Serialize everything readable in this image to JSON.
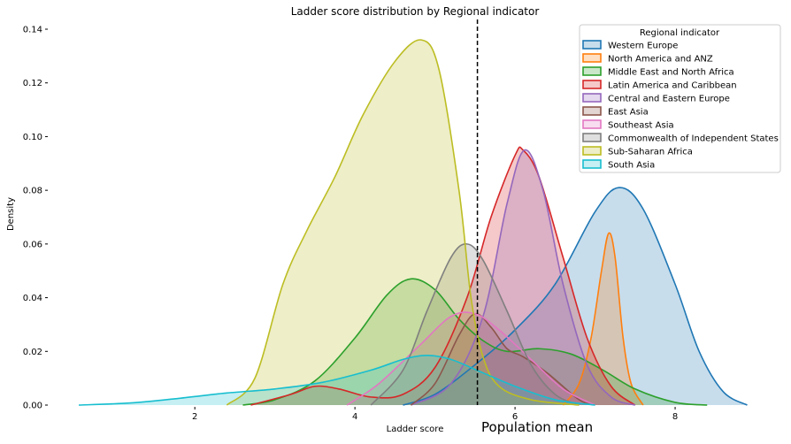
{
  "chart_data": {
    "type": "area",
    "title": "Ladder score distribution by Regional indicator",
    "xlabel": "Ladder score",
    "ylabel": "Density",
    "xlim": [
      0.55,
      8.95
    ],
    "ylim": [
      0,
      0.14
    ],
    "x_ticks": [
      2,
      4,
      6,
      8
    ],
    "y_ticks": [
      0.0,
      0.02,
      0.04,
      0.06,
      0.08,
      0.1,
      0.12,
      0.14
    ],
    "grid": false,
    "legend_title": "Regional indicator",
    "legend_position": "top-right",
    "annotation": {
      "text": "Population mean",
      "x": 5.53,
      "line_style": "dashed",
      "color": "#000000"
    },
    "series": [
      {
        "name": "Western Europe",
        "color": "#1f77b4",
        "points": [
          [
            4.6,
            0
          ],
          [
            5.0,
            0.004
          ],
          [
            5.5,
            0.015
          ],
          [
            6.0,
            0.028
          ],
          [
            6.5,
            0.045
          ],
          [
            7.0,
            0.072
          ],
          [
            7.3,
            0.081
          ],
          [
            7.6,
            0.073
          ],
          [
            8.0,
            0.045
          ],
          [
            8.3,
            0.02
          ],
          [
            8.6,
            0.005
          ],
          [
            8.9,
            0
          ]
        ]
      },
      {
        "name": "North America and ANZ",
        "color": "#ff7f0e",
        "points": [
          [
            6.6,
            0
          ],
          [
            6.8,
            0.008
          ],
          [
            6.95,
            0.025
          ],
          [
            7.08,
            0.05
          ],
          [
            7.17,
            0.064
          ],
          [
            7.25,
            0.055
          ],
          [
            7.35,
            0.025
          ],
          [
            7.45,
            0.008
          ],
          [
            7.6,
            0
          ]
        ]
      },
      {
        "name": "Middle East and North Africa",
        "color": "#2ca02c",
        "points": [
          [
            2.6,
            0
          ],
          [
            3.0,
            0.002
          ],
          [
            3.5,
            0.009
          ],
          [
            4.0,
            0.025
          ],
          [
            4.4,
            0.041
          ],
          [
            4.7,
            0.047
          ],
          [
            5.0,
            0.043
          ],
          [
            5.3,
            0.032
          ],
          [
            5.6,
            0.024
          ],
          [
            5.9,
            0.02
          ],
          [
            6.3,
            0.021
          ],
          [
            6.7,
            0.019
          ],
          [
            7.1,
            0.013
          ],
          [
            7.5,
            0.006
          ],
          [
            8.0,
            0.001
          ],
          [
            8.4,
            0
          ]
        ]
      },
      {
        "name": "Latin America and Caribbean",
        "color": "#d62728",
        "points": [
          [
            2.7,
            0
          ],
          [
            3.2,
            0.004
          ],
          [
            3.5,
            0.007
          ],
          [
            3.8,
            0.006
          ],
          [
            4.2,
            0.003
          ],
          [
            4.6,
            0.004
          ],
          [
            5.0,
            0.014
          ],
          [
            5.4,
            0.04
          ],
          [
            5.7,
            0.07
          ],
          [
            6.0,
            0.093
          ],
          [
            6.1,
            0.095
          ],
          [
            6.3,
            0.085
          ],
          [
            6.6,
            0.055
          ],
          [
            6.9,
            0.025
          ],
          [
            7.2,
            0.007
          ],
          [
            7.5,
            0
          ]
        ]
      },
      {
        "name": "Central and Eastern Europe",
        "color": "#9467bd",
        "points": [
          [
            4.7,
            0
          ],
          [
            5.2,
            0.008
          ],
          [
            5.6,
            0.033
          ],
          [
            5.9,
            0.075
          ],
          [
            6.12,
            0.095
          ],
          [
            6.35,
            0.08
          ],
          [
            6.6,
            0.045
          ],
          [
            6.9,
            0.015
          ],
          [
            7.2,
            0.003
          ],
          [
            7.5,
            0
          ]
        ]
      },
      {
        "name": "East Asia",
        "color": "#8c564b",
        "points": [
          [
            4.7,
            0
          ],
          [
            5.0,
            0.008
          ],
          [
            5.3,
            0.026
          ],
          [
            5.5,
            0.034
          ],
          [
            5.7,
            0.029
          ],
          [
            5.9,
            0.021
          ],
          [
            6.1,
            0.018
          ],
          [
            6.4,
            0.012
          ],
          [
            6.8,
            0.002
          ],
          [
            7.0,
            0
          ]
        ]
      },
      {
        "name": "Southeast Asia",
        "color": "#e377c2",
        "points": [
          [
            3.9,
            0
          ],
          [
            4.3,
            0.008
          ],
          [
            4.8,
            0.022
          ],
          [
            5.2,
            0.033
          ],
          [
            5.5,
            0.034
          ],
          [
            5.8,
            0.028
          ],
          [
            6.2,
            0.017
          ],
          [
            6.6,
            0.006
          ],
          [
            7.0,
            0
          ]
        ]
      },
      {
        "name": "Commonwealth of Independent States",
        "color": "#7f7f7f",
        "points": [
          [
            4.2,
            0
          ],
          [
            4.6,
            0.013
          ],
          [
            4.9,
            0.035
          ],
          [
            5.2,
            0.055
          ],
          [
            5.4,
            0.06
          ],
          [
            5.6,
            0.054
          ],
          [
            5.9,
            0.035
          ],
          [
            6.2,
            0.015
          ],
          [
            6.5,
            0.004
          ],
          [
            6.8,
            0
          ]
        ]
      },
      {
        "name": "Sub-Saharan Africa",
        "color": "#bcbd22",
        "points": [
          [
            2.4,
            0
          ],
          [
            2.75,
            0.01
          ],
          [
            3.1,
            0.045
          ],
          [
            3.4,
            0.065
          ],
          [
            3.75,
            0.085
          ],
          [
            4.1,
            0.108
          ],
          [
            4.5,
            0.128
          ],
          [
            4.83,
            0.136
          ],
          [
            5.05,
            0.125
          ],
          [
            5.3,
            0.08
          ],
          [
            5.45,
            0.04
          ],
          [
            5.6,
            0.018
          ],
          [
            5.8,
            0.007
          ],
          [
            6.2,
            0.002
          ],
          [
            6.8,
            0
          ]
        ]
      },
      {
        "name": "South Asia",
        "color": "#17becf",
        "points": [
          [
            0.55,
            0
          ],
          [
            1.2,
            0.0008
          ],
          [
            1.8,
            0.0025
          ],
          [
            2.4,
            0.0045
          ],
          [
            3.0,
            0.006
          ],
          [
            3.6,
            0.0085
          ],
          [
            4.2,
            0.013
          ],
          [
            4.6,
            0.017
          ],
          [
            4.9,
            0.0185
          ],
          [
            5.2,
            0.017
          ],
          [
            5.6,
            0.012
          ],
          [
            6.0,
            0.007
          ],
          [
            6.5,
            0.002
          ],
          [
            7.0,
            0
          ]
        ]
      }
    ]
  }
}
